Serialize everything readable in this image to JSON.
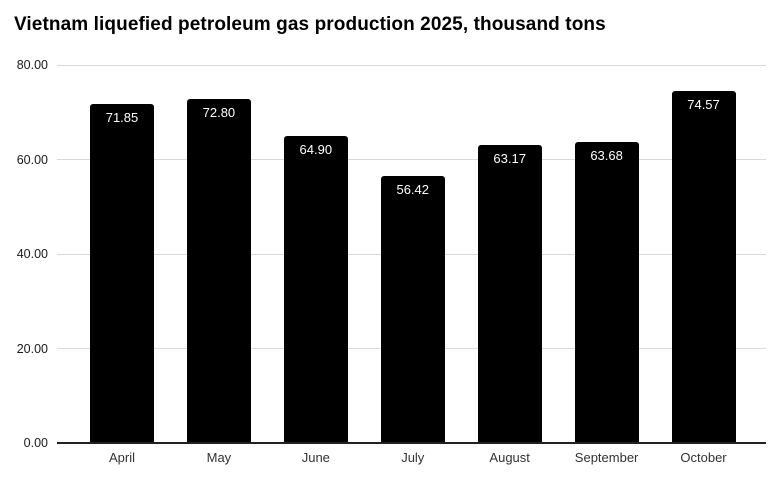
{
  "title": "Vietnam liquefied petroleum gas production 2025, thousand tons",
  "chart_data": {
    "type": "bar",
    "title": "Vietnam liquefied petroleum gas production 2025, thousand tons",
    "categories": [
      "April",
      "May",
      "June",
      "July",
      "August",
      "September",
      "October"
    ],
    "values": [
      71.85,
      72.8,
      64.9,
      56.42,
      63.17,
      63.68,
      74.57
    ],
    "value_labels": [
      "71.85",
      "72.80",
      "64.90",
      "56.42",
      "63.17",
      "63.68",
      "74.57"
    ],
    "xlabel": "",
    "ylabel": "",
    "ylim": [
      0,
      80
    ],
    "yticks": [
      0,
      20,
      40,
      60,
      80
    ],
    "ytick_labels": [
      "0.00",
      "20.00",
      "40.00",
      "60.00",
      "80.00"
    ],
    "grid": "horizontal gridlines on",
    "legend": "none",
    "value_label_position": "inside bar top",
    "colors": {
      "bar": "#000000",
      "value_label": "#ffffff",
      "gridline": "#d9d9d9",
      "axis_line": "#212121",
      "ytick_label": "#1a1a1a",
      "xtick_label": "#333333",
      "title": "#000000",
      "background": "#ffffff"
    }
  }
}
